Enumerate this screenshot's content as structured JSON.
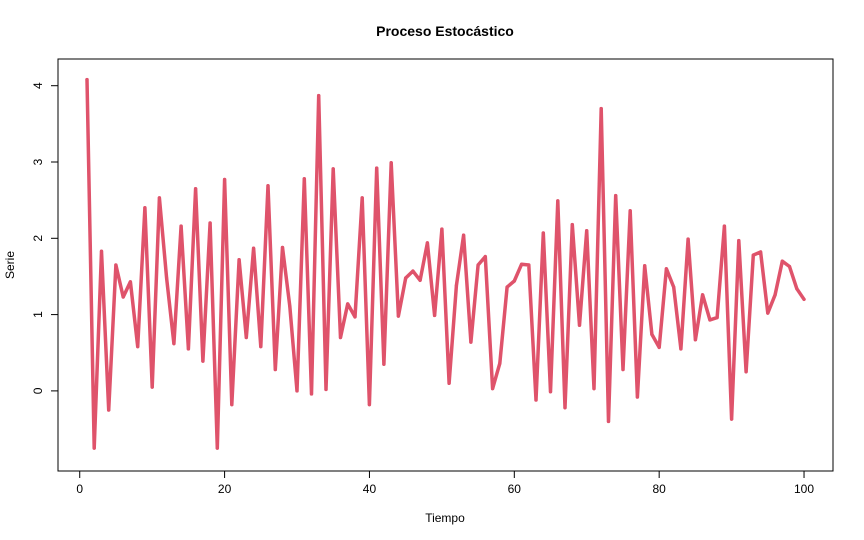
{
  "chart_data": {
    "type": "line",
    "title": "Proceso Estocástico",
    "xlabel": "Tiempo",
    "ylabel": "Serie",
    "xlim": [
      -3,
      104
    ],
    "ylim": [
      -1.05,
      4.35
    ],
    "x_ticks": [
      0,
      20,
      40,
      60,
      80,
      100
    ],
    "y_ticks": [
      0,
      1,
      2,
      3,
      4
    ],
    "grid": false,
    "line_color": "#DF536B",
    "series": [
      {
        "x": [
          1,
          2,
          3,
          4,
          5,
          6,
          7,
          8,
          9,
          10,
          11,
          12,
          13,
          14,
          15,
          16,
          17,
          18,
          19,
          20,
          21,
          22,
          23,
          24,
          25,
          26,
          27,
          28,
          29,
          30,
          31,
          32,
          33,
          34,
          35,
          36,
          37,
          38,
          39,
          40,
          41,
          42,
          43,
          44,
          45,
          46,
          47,
          48,
          49,
          50,
          51,
          52,
          53,
          54,
          55,
          56,
          57,
          58,
          59,
          60,
          61,
          62,
          63,
          64,
          65,
          66,
          67,
          68,
          69,
          70,
          71,
          72,
          73,
          74,
          75,
          76,
          77,
          78,
          79,
          80,
          81,
          82,
          83,
          84,
          85,
          86,
          87,
          88,
          89,
          90,
          91,
          92,
          93,
          94,
          95,
          96,
          97,
          98,
          99,
          100
        ],
        "y": [
          4.08,
          -0.75,
          1.83,
          -0.25,
          1.65,
          1.23,
          1.43,
          0.58,
          2.4,
          0.05,
          2.53,
          1.48,
          0.62,
          2.16,
          0.55,
          2.65,
          0.39,
          2.2,
          -0.75,
          2.77,
          -0.18,
          1.72,
          0.7,
          1.87,
          0.58,
          2.69,
          0.28,
          1.88,
          1.11,
          0.0,
          2.78,
          -0.04,
          3.87,
          0.02,
          2.91,
          0.7,
          1.14,
          0.97,
          2.53,
          -0.18,
          2.92,
          0.35,
          2.99,
          0.98,
          1.48,
          1.57,
          1.45,
          1.94,
          0.99,
          2.12,
          0.1,
          1.38,
          2.04,
          0.64,
          1.65,
          1.76,
          0.03,
          0.36,
          1.36,
          1.44,
          1.66,
          1.65,
          -0.12,
          2.07,
          -0.01,
          2.49,
          -0.22,
          2.18,
          0.86,
          2.1,
          0.03,
          3.7,
          -0.4,
          2.56,
          0.28,
          2.36,
          -0.08,
          1.64,
          0.74,
          0.57,
          1.6,
          1.36,
          0.55,
          1.99,
          0.67,
          1.26,
          0.93,
          0.96,
          2.16,
          -0.37,
          1.97,
          0.25,
          1.78,
          1.82,
          1.02,
          1.26,
          1.7,
          1.63,
          1.34,
          1.2
        ]
      }
    ]
  }
}
